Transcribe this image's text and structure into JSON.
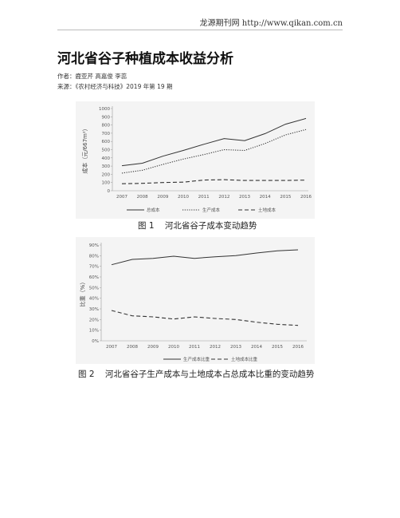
{
  "header": {
    "source": "龙源期刊网 http://www.qikan.com.cn"
  },
  "article": {
    "title": "河北省谷子种植成本收益分析",
    "authors": "作者：鹿亚芹 高嘉俊 李蕊",
    "source": "来源：《农村经济与科技》2019 年第 19 期"
  },
  "chart_data": [
    {
      "type": "line",
      "ylabel": "成本（元/667m²）",
      "ylim": [
        0,
        1000
      ],
      "yticks": [
        "0",
        "100",
        "200",
        "300",
        "400",
        "500",
        "600",
        "700",
        "800",
        "900",
        "1000"
      ],
      "categories": [
        "2007",
        "2008",
        "2009",
        "2010",
        "2011",
        "2012",
        "2013",
        "2014",
        "2015",
        "2016"
      ],
      "grid": false,
      "legend": "bottom",
      "series": [
        {
          "name": "总成本",
          "style": "solid",
          "values": [
            305,
            335,
            420,
            490,
            565,
            635,
            610,
            695,
            810,
            880
          ]
        },
        {
          "name": "生产成本",
          "style": "dotted",
          "values": [
            215,
            250,
            320,
            385,
            440,
            500,
            490,
            575,
            680,
            745
          ]
        },
        {
          "name": "土地成本",
          "style": "dashed",
          "values": [
            85,
            90,
            100,
            105,
            130,
            135,
            125,
            125,
            125,
            130
          ]
        }
      ],
      "caption": "图 1    河北省谷子成本变动趋势"
    },
    {
      "type": "line",
      "ylabel": "比重（%）",
      "ylim": [
        0,
        90
      ],
      "yticks": [
        "0%",
        "10%",
        "20%",
        "30%",
        "40%",
        "50%",
        "60%",
        "70%",
        "80%",
        "90%"
      ],
      "categories": [
        "2007",
        "2008",
        "2009",
        "2010",
        "2011",
        "2012",
        "2013",
        "2014",
        "2015",
        "2016"
      ],
      "grid": false,
      "legend": "bottom",
      "series": [
        {
          "name": "生产成本比重",
          "style": "solid",
          "values": [
            71.5,
            76.5,
            77.5,
            79.5,
            77.5,
            79.0,
            80.0,
            82.5,
            84.5,
            85.5
          ]
        },
        {
          "name": "土地成本比重",
          "style": "dashed",
          "values": [
            28.5,
            23.5,
            22.5,
            20.5,
            22.5,
            21.0,
            20.0,
            17.5,
            15.5,
            14.5
          ]
        }
      ],
      "caption": "图 2    河北省谷子生产成本与土地成本占总成本比重的变动趋势"
    }
  ]
}
